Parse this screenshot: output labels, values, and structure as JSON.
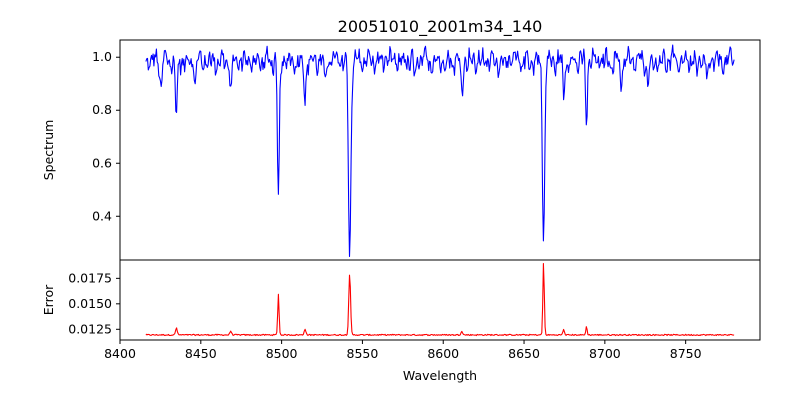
{
  "chart_data": {
    "type": "line",
    "title": "20051010_2001m34_140",
    "xlabel": "Wavelength",
    "xlim": [
      8400,
      8796
    ],
    "xticks": [
      8400,
      8450,
      8500,
      8550,
      8600,
      8650,
      8700,
      8750
    ],
    "panels": [
      {
        "name": "spectrum",
        "ylabel": "Spectrum",
        "ylim": [
          0.235,
          1.065
        ],
        "yticks": [
          0.4,
          0.6,
          0.8,
          1.0
        ],
        "ytick_labels": [
          "0.4",
          "0.6",
          "0.8",
          "1.0"
        ],
        "color": "#0000ff",
        "continuum": {
          "x_start": 8416,
          "x_end": 8780,
          "base": 0.985,
          "wiggle": 0.02
        },
        "lines": [
          {
            "center": 8425.3,
            "depth": 0.11,
            "width": 0.8
          },
          {
            "center": 8434.9,
            "depth": 0.2,
            "width": 0.9
          },
          {
            "center": 8446.5,
            "depth": 0.07,
            "width": 0.8
          },
          {
            "center": 8468.5,
            "depth": 0.13,
            "width": 0.8
          },
          {
            "center": 8498.0,
            "depth": 0.53,
            "width": 0.9
          },
          {
            "center": 8514.5,
            "depth": 0.13,
            "width": 0.9
          },
          {
            "center": 8526.5,
            "depth": 0.08,
            "width": 0.8
          },
          {
            "center": 8542.1,
            "depth": 0.72,
            "width": 1.1
          },
          {
            "center": 8582.3,
            "depth": 0.07,
            "width": 0.8
          },
          {
            "center": 8611.5,
            "depth": 0.12,
            "width": 0.8
          },
          {
            "center": 8662.1,
            "depth": 0.67,
            "width": 1.0
          },
          {
            "center": 8674.5,
            "depth": 0.12,
            "width": 0.8
          },
          {
            "center": 8688.6,
            "depth": 0.22,
            "width": 0.8
          },
          {
            "center": 8710.0,
            "depth": 0.08,
            "width": 0.8
          },
          {
            "center": 8727.0,
            "depth": 0.09,
            "width": 0.8
          },
          {
            "center": 8757.0,
            "depth": 0.07,
            "width": 0.8
          },
          {
            "center": 8763.5,
            "depth": 0.09,
            "width": 0.8
          }
        ]
      },
      {
        "name": "error",
        "ylabel": "Error",
        "ylim": [
          0.01145,
          0.0193
        ],
        "yticks": [
          0.0125,
          0.015,
          0.0175
        ],
        "ytick_labels": [
          "0.0125",
          "0.0150",
          "0.0175"
        ],
        "color": "#ff0000",
        "baseline": 0.01195,
        "peaks": [
          {
            "center": 8434.9,
            "height": 0.0007,
            "width": 0.7
          },
          {
            "center": 8468.5,
            "height": 0.0004,
            "width": 0.7
          },
          {
            "center": 8498.0,
            "height": 0.004,
            "width": 0.6
          },
          {
            "center": 8514.5,
            "height": 0.0006,
            "width": 0.7
          },
          {
            "center": 8542.1,
            "height": 0.006,
            "width": 0.8
          },
          {
            "center": 8611.5,
            "height": 0.0004,
            "width": 0.7
          },
          {
            "center": 8662.1,
            "height": 0.0072,
            "width": 0.6
          },
          {
            "center": 8674.5,
            "height": 0.0005,
            "width": 0.7
          },
          {
            "center": 8688.6,
            "height": 0.0008,
            "width": 0.6
          }
        ]
      }
    ]
  }
}
